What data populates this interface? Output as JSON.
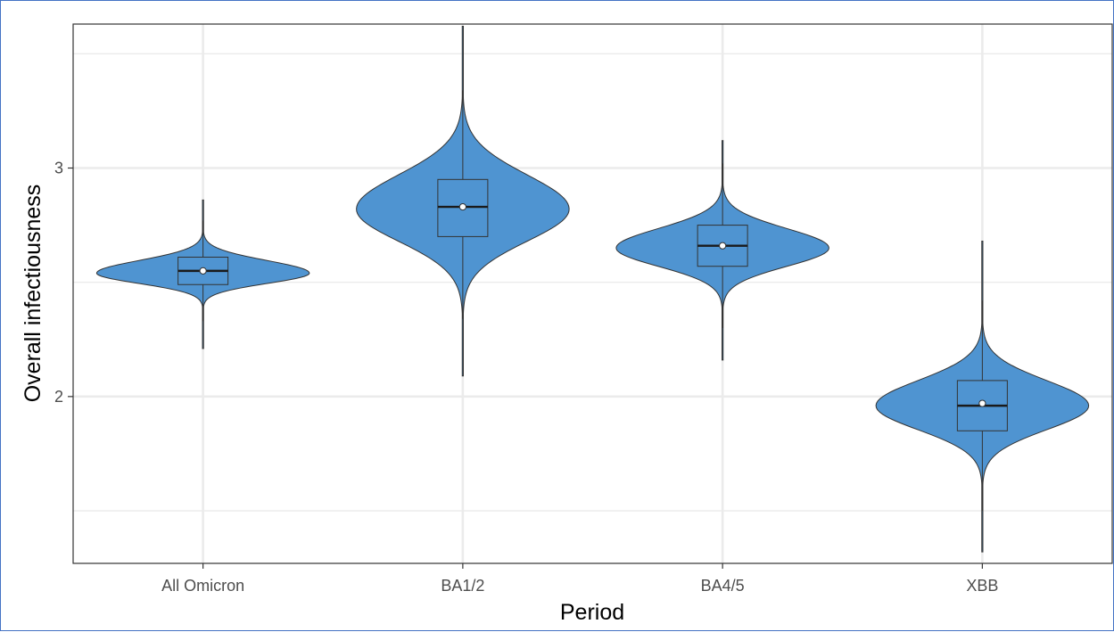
{
  "chart_data": {
    "type": "violin",
    "title": "",
    "xlabel": "Period",
    "ylabel": "Overall infectiousness",
    "categories": [
      "All Omicron",
      "BA1/2",
      "BA4/5",
      "XBB"
    ],
    "ylim": [
      1.27,
      3.63
    ],
    "y_major_ticks": [
      2,
      3
    ],
    "y_major_tick_labels": [
      "2",
      "3"
    ],
    "y_minor_gridlines": [
      1.5,
      2.5,
      3.5
    ],
    "grid": true,
    "legend": "none",
    "fill_color": "#4f94d1",
    "outline_color": "#333333",
    "violins": [
      {
        "category": "All Omicron",
        "min": 2.21,
        "max": 2.86,
        "q1": 2.49,
        "median": 2.55,
        "q3": 2.61,
        "mean": 2.55,
        "whisker_low": 2.33,
        "whisker_high": 2.77,
        "mode": 2.54,
        "spread_low": 0.045,
        "spread_high": 0.055,
        "max_half_width_fraction": 0.91
      },
      {
        "category": "BA1/2",
        "min": 2.09,
        "max": 3.62,
        "q1": 2.7,
        "median": 2.83,
        "q3": 2.95,
        "mean": 2.83,
        "whisker_low": 2.34,
        "whisker_high": 3.34,
        "mode": 2.82,
        "spread_low": 0.14,
        "spread_high": 0.15,
        "max_half_width_fraction": 0.91
      },
      {
        "category": "BA4/5",
        "min": 2.16,
        "max": 3.12,
        "q1": 2.57,
        "median": 2.66,
        "q3": 2.75,
        "mean": 2.66,
        "whisker_low": 2.3,
        "whisker_high": 3.02,
        "mode": 2.65,
        "spread_low": 0.08,
        "spread_high": 0.085,
        "max_half_width_fraction": 0.91
      },
      {
        "category": "XBB",
        "min": 1.32,
        "max": 2.68,
        "q1": 1.85,
        "median": 1.96,
        "q3": 2.07,
        "mean": 1.97,
        "whisker_low": 1.5,
        "whisker_high": 2.42,
        "mode": 1.96,
        "spread_low": 0.105,
        "spread_high": 0.11,
        "max_half_width_fraction": 0.91
      }
    ]
  }
}
